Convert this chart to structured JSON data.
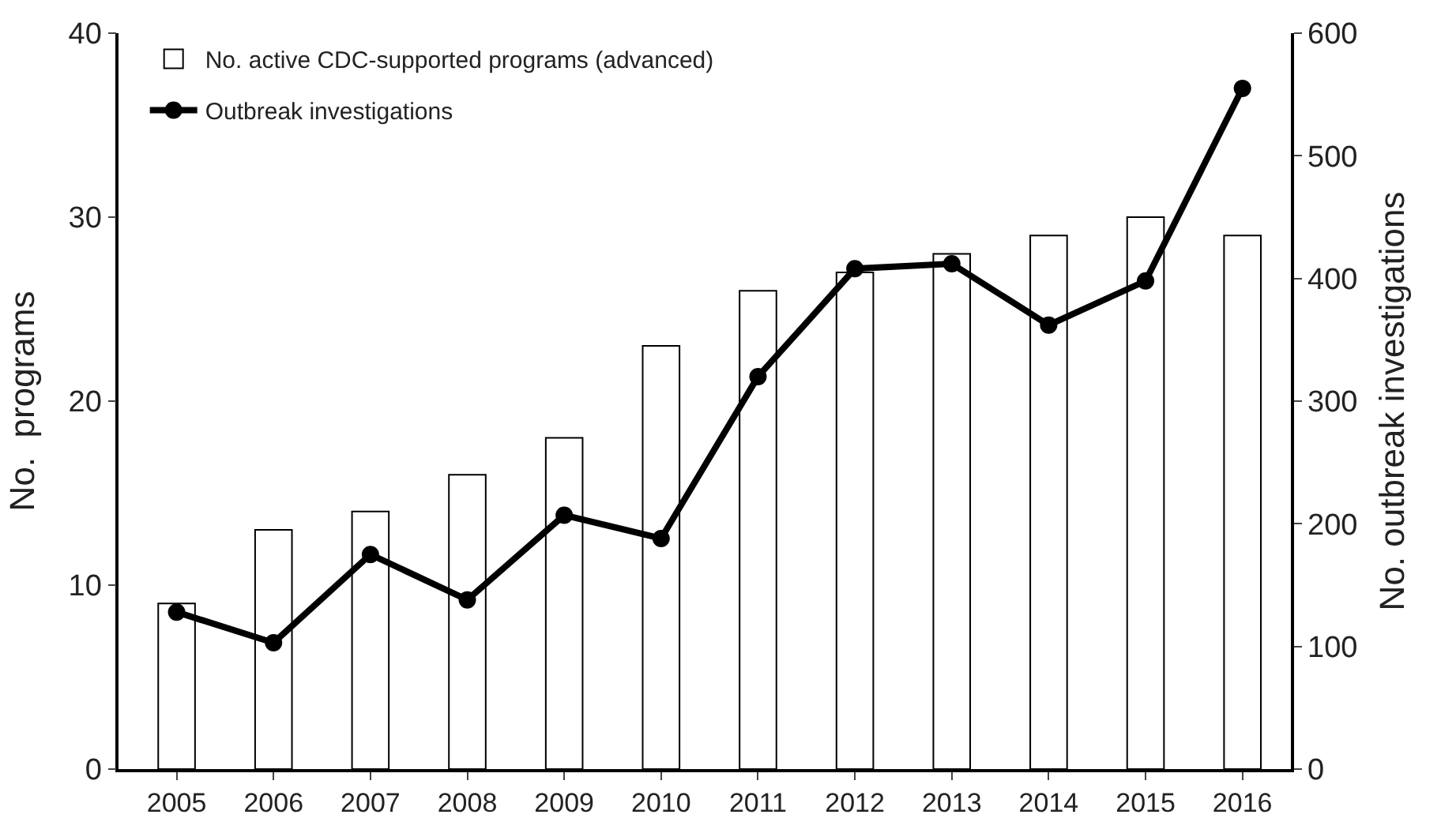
{
  "chart_data": {
    "type": "bar",
    "categories": [
      "2005",
      "2006",
      "2007",
      "2008",
      "2009",
      "2010",
      "2011",
      "2012",
      "2013",
      "2014",
      "2015",
      "2016"
    ],
    "series": [
      {
        "name": "No. active CDC-supported programs (advanced)",
        "color": "#ffffff",
        "values": [
          9,
          13,
          14,
          16,
          18,
          23,
          26,
          27,
          28,
          29,
          30,
          29
        ]
      },
      {
        "name": "Outbreak investigations",
        "type": "line",
        "axis": "y2",
        "color": "#000000",
        "marker": "circle",
        "line_style": "solid",
        "values": [
          128,
          103,
          175,
          138,
          207,
          188,
          320,
          408,
          412,
          362,
          398,
          555
        ]
      }
    ],
    "ylabel": "No.  programs",
    "y2label": "No. outbreak investigations",
    "ylim": [
      0,
      40
    ],
    "yticks": [
      0,
      10,
      20,
      30,
      40
    ],
    "y2lim": [
      0,
      600
    ],
    "y2ticks": [
      0,
      100,
      200,
      300,
      400,
      500,
      600
    ],
    "legend": "top left"
  }
}
